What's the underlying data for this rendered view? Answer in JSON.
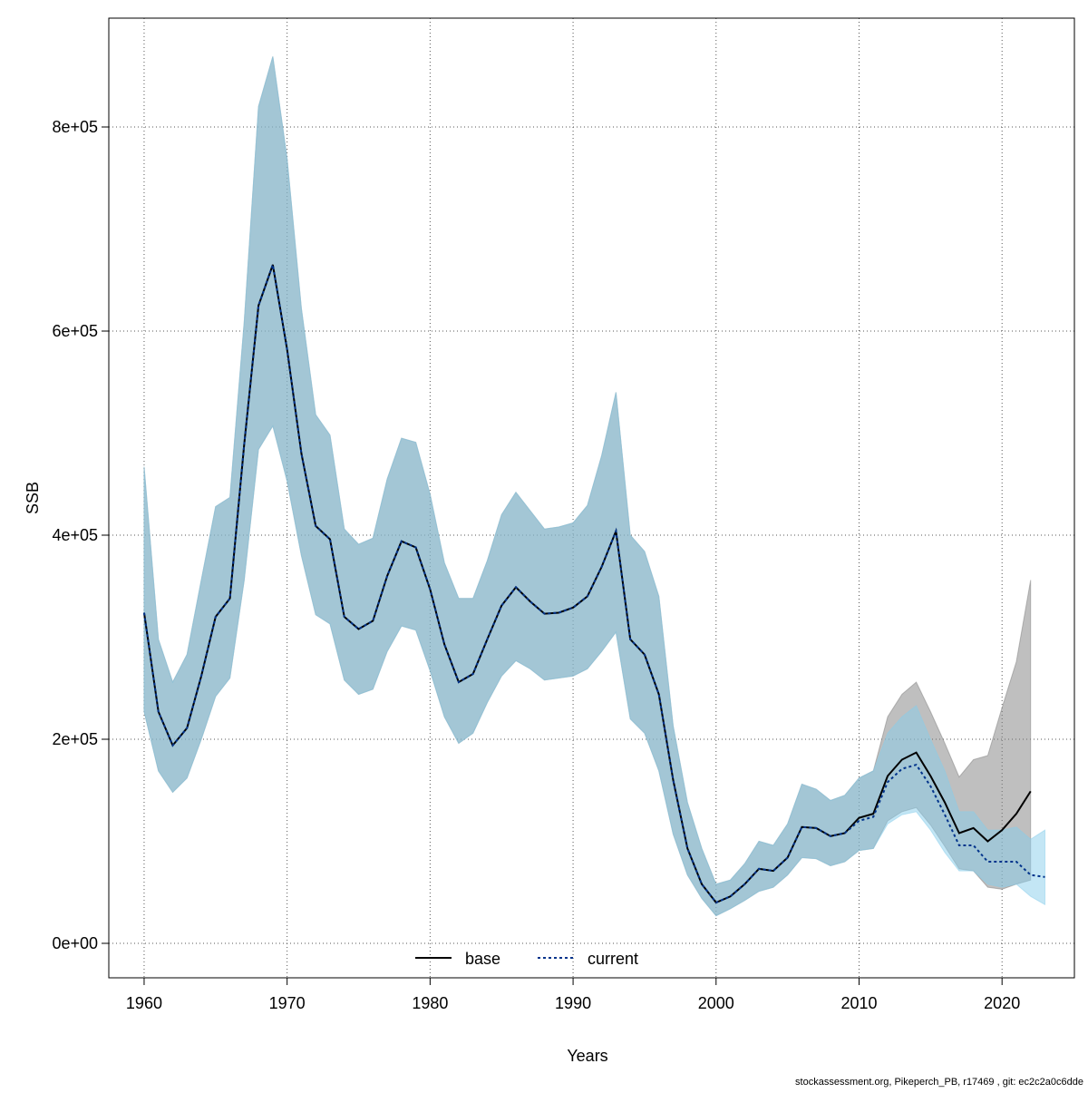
{
  "chart_data": {
    "type": "band-line",
    "x_label": "Years",
    "y_label": "SSB",
    "footer": "stockassessment.org, Pikeperch_PB, r17469 , git: ec2c2a0c6dde",
    "xlim": [
      1957.53,
      2025.06
    ],
    "ylim": [
      -33778,
      906667
    ],
    "xticks": [
      1960,
      1970,
      1980,
      1990,
      2000,
      2010,
      2020
    ],
    "yticks": [
      {
        "value": 0,
        "label": "0e+00"
      },
      {
        "value": 200000,
        "label": "2e+05"
      },
      {
        "value": 400000,
        "label": "4e+05"
      },
      {
        "value": 600000,
        "label": "6e+05"
      },
      {
        "value": 800000,
        "label": "8e+05"
      }
    ],
    "grid": true,
    "legend": "bottom",
    "series": [
      {
        "name": "base",
        "color": "#000000",
        "band_color": "rgba(128,128,128,0.5)",
        "dash": "none",
        "x": [
          1960,
          1961,
          1962,
          1963,
          1964,
          1965,
          1966,
          1967,
          1968,
          1969,
          1970,
          1971,
          1972,
          1973,
          1974,
          1975,
          1976,
          1977,
          1978,
          1979,
          1980,
          1981,
          1982,
          1983,
          1984,
          1985,
          1986,
          1987,
          1988,
          1989,
          1990,
          1991,
          1992,
          1993,
          1994,
          1995,
          1996,
          1997,
          1998,
          1999,
          2000,
          2001,
          2002,
          2003,
          2004,
          2005,
          2006,
          2007,
          2008,
          2009,
          2010,
          2011,
          2012,
          2013,
          2014,
          2015,
          2016,
          2017,
          2018,
          2019,
          2020,
          2021,
          2022
        ],
        "values": [
          324000,
          227000,
          194000,
          211000,
          262000,
          320000,
          338000,
          489000,
          625000,
          665000,
          582000,
          480000,
          409000,
          396000,
          320000,
          308000,
          316000,
          360000,
          394000,
          388000,
          347000,
          293000,
          256000,
          264000,
          298000,
          331000,
          349000,
          335000,
          323000,
          324000,
          329000,
          340000,
          369000,
          404000,
          298000,
          283000,
          244000,
          160000,
          93000,
          58000,
          40000,
          46000,
          58000,
          73000,
          71000,
          84000,
          114000,
          113000,
          105000,
          108000,
          123000,
          127000,
          164000,
          180000,
          187000,
          164000,
          138000,
          108000,
          113000,
          100000,
          111000,
          127000,
          149000
        ],
        "lower": [
          227000,
          169000,
          148000,
          162000,
          200000,
          242000,
          260000,
          356000,
          484000,
          507000,
          453000,
          380000,
          322000,
          313000,
          258000,
          244000,
          249000,
          286000,
          311000,
          307000,
          267000,
          222000,
          196000,
          206000,
          236000,
          262000,
          277000,
          269000,
          258000,
          260000,
          262000,
          269000,
          286000,
          305000,
          220000,
          206000,
          169000,
          107000,
          67000,
          44000,
          27000,
          34000,
          42000,
          51000,
          55000,
          67000,
          84000,
          83000,
          76000,
          80000,
          91000,
          93000,
          120000,
          129000,
          133000,
          116000,
          95000,
          73000,
          71000,
          55000,
          53000,
          58000,
          62000
        ],
        "upper": [
          467000,
          298000,
          256000,
          283000,
          356000,
          428000,
          437000,
          609000,
          820000,
          869000,
          769000,
          622000,
          518000,
          498000,
          406000,
          391000,
          397000,
          455000,
          495000,
          491000,
          440000,
          373000,
          338000,
          338000,
          375000,
          420000,
          442000,
          424000,
          406000,
          408000,
          412000,
          429000,
          478000,
          540000,
          400000,
          384000,
          340000,
          213000,
          138000,
          93000,
          58000,
          62000,
          78000,
          100000,
          96000,
          117000,
          156000,
          151000,
          140000,
          145000,
          162000,
          169000,
          222000,
          244000,
          256000,
          227000,
          196000,
          163000,
          180000,
          184000,
          231000,
          276000,
          356000
        ]
      },
      {
        "name": "current",
        "color": "#00338b",
        "band_color": "rgba(135,206,235,0.5)",
        "dash": "3,3",
        "x": [
          1960,
          1961,
          1962,
          1963,
          1964,
          1965,
          1966,
          1967,
          1968,
          1969,
          1970,
          1971,
          1972,
          1973,
          1974,
          1975,
          1976,
          1977,
          1978,
          1979,
          1980,
          1981,
          1982,
          1983,
          1984,
          1985,
          1986,
          1987,
          1988,
          1989,
          1990,
          1991,
          1992,
          1993,
          1994,
          1995,
          1996,
          1997,
          1998,
          1999,
          2000,
          2001,
          2002,
          2003,
          2004,
          2005,
          2006,
          2007,
          2008,
          2009,
          2010,
          2011,
          2012,
          2013,
          2014,
          2015,
          2016,
          2017,
          2018,
          2019,
          2020,
          2021,
          2022,
          2023
        ],
        "values": [
          324000,
          227000,
          194000,
          211000,
          262000,
          320000,
          338000,
          489000,
          625000,
          665000,
          582000,
          480000,
          409000,
          396000,
          320000,
          308000,
          316000,
          360000,
          394000,
          388000,
          347000,
          293000,
          256000,
          264000,
          298000,
          331000,
          349000,
          335000,
          323000,
          324000,
          329000,
          340000,
          369000,
          404000,
          298000,
          283000,
          244000,
          160000,
          93000,
          58000,
          40000,
          46000,
          58000,
          73000,
          71000,
          84000,
          114000,
          113000,
          105000,
          108000,
          120000,
          124000,
          158000,
          171000,
          175000,
          154000,
          126000,
          96000,
          96000,
          80000,
          80000,
          80000,
          67000,
          65000
        ],
        "lower": [
          227000,
          169000,
          148000,
          162000,
          200000,
          242000,
          260000,
          356000,
          484000,
          507000,
          453000,
          380000,
          322000,
          313000,
          258000,
          244000,
          249000,
          286000,
          311000,
          307000,
          267000,
          222000,
          196000,
          206000,
          236000,
          262000,
          277000,
          269000,
          258000,
          260000,
          262000,
          269000,
          286000,
          305000,
          220000,
          206000,
          169000,
          107000,
          67000,
          44000,
          27000,
          34000,
          42000,
          51000,
          55000,
          67000,
          84000,
          83000,
          76000,
          80000,
          91000,
          93000,
          117000,
          126000,
          129000,
          111000,
          89000,
          71000,
          71000,
          58000,
          55000,
          58000,
          46000,
          38000
        ],
        "upper": [
          467000,
          298000,
          256000,
          283000,
          356000,
          428000,
          437000,
          609000,
          820000,
          869000,
          769000,
          622000,
          518000,
          498000,
          406000,
          391000,
          397000,
          455000,
          495000,
          491000,
          440000,
          373000,
          338000,
          338000,
          375000,
          420000,
          442000,
          424000,
          406000,
          408000,
          412000,
          429000,
          478000,
          540000,
          400000,
          384000,
          340000,
          213000,
          138000,
          93000,
          58000,
          62000,
          78000,
          100000,
          96000,
          117000,
          156000,
          151000,
          140000,
          145000,
          162000,
          169000,
          206000,
          222000,
          233000,
          200000,
          169000,
          129000,
          129000,
          111000,
          111000,
          114000,
          102000,
          111000
        ]
      }
    ]
  }
}
